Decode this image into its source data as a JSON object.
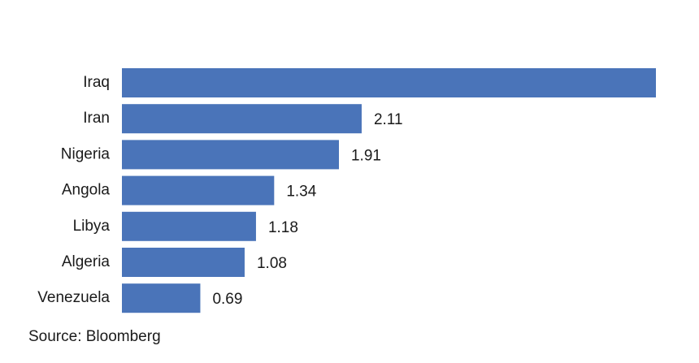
{
  "chart_data": {
    "type": "barh",
    "categories": [
      "Iraq",
      "Iran",
      "Nigeria",
      "Angola",
      "Libya",
      "Algeria",
      "Venezuela"
    ],
    "values": [
      4.7,
      2.11,
      1.91,
      1.34,
      1.18,
      1.08,
      0.69
    ],
    "value_labels": [
      null,
      "2.11",
      "1.91",
      "1.34",
      "1.18",
      "1.08",
      "0.69"
    ],
    "color": "#4a74b9",
    "source": "Source: Bloomberg"
  }
}
